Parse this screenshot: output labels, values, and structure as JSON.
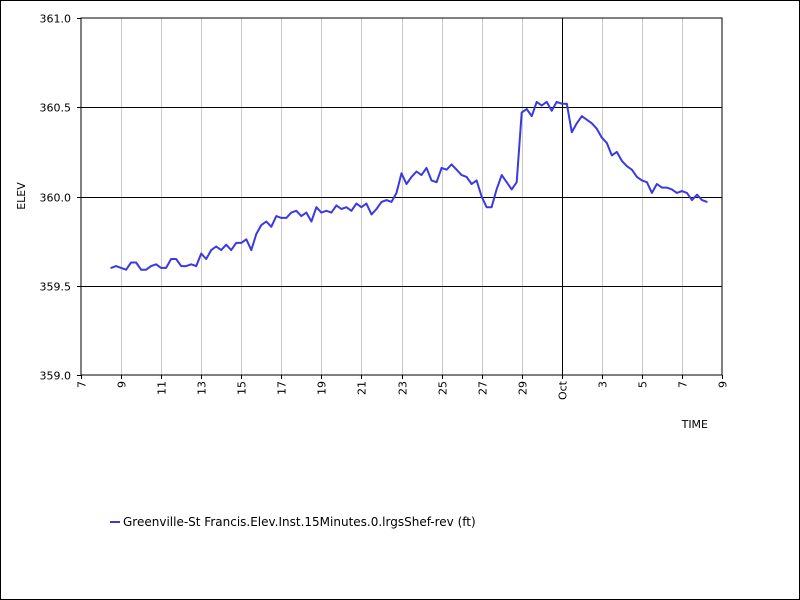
{
  "chart_data": {
    "type": "line",
    "title": "",
    "xlabel": "TIME",
    "ylabel": "ELEV",
    "ylim": [
      359.0,
      361.0
    ],
    "yticks": [
      "359.0",
      "359.5",
      "360.0",
      "360.5",
      "361.0"
    ],
    "xlim": [
      "2023-09-07",
      "2023-10-09"
    ],
    "xticks": [
      {
        "date": "2023-09-07",
        "label": "7"
      },
      {
        "date": "2023-09-09",
        "label": "9"
      },
      {
        "date": "2023-09-11",
        "label": "11"
      },
      {
        "date": "2023-09-13",
        "label": "13"
      },
      {
        "date": "2023-09-15",
        "label": "15"
      },
      {
        "date": "2023-09-17",
        "label": "17"
      },
      {
        "date": "2023-09-19",
        "label": "19"
      },
      {
        "date": "2023-09-21",
        "label": "21"
      },
      {
        "date": "2023-09-23",
        "label": "23"
      },
      {
        "date": "2023-09-25",
        "label": "25"
      },
      {
        "date": "2023-09-27",
        "label": "27"
      },
      {
        "date": "2023-09-29",
        "label": "29"
      },
      {
        "date": "2023-10-01",
        "label": "Oct"
      },
      {
        "date": "2023-10-03",
        "label": "3"
      },
      {
        "date": "2023-10-05",
        "label": "5"
      },
      {
        "date": "2023-10-07",
        "label": "7"
      },
      {
        "date": "2023-10-09",
        "label": "9"
      }
    ],
    "major_gridline_date": "2023-10-01",
    "grid": true,
    "legend_position": "bottom-left",
    "series": [
      {
        "name": "Greenville-St Francis.Elev.Inst.15Minutes.0.lrgsShef-rev (ft)",
        "color": "#3a3adf",
        "points": [
          [
            "2023-09-08T12:00",
            359.6
          ],
          [
            "2023-09-08T18:00",
            359.61
          ],
          [
            "2023-09-09T00:00",
            359.6
          ],
          [
            "2023-09-09T06:00",
            359.59
          ],
          [
            "2023-09-09T12:00",
            359.63
          ],
          [
            "2023-09-09T18:00",
            359.63
          ],
          [
            "2023-09-10T00:00",
            359.59
          ],
          [
            "2023-09-10T06:00",
            359.59
          ],
          [
            "2023-09-10T12:00",
            359.61
          ],
          [
            "2023-09-10T18:00",
            359.62
          ],
          [
            "2023-09-11T00:00",
            359.6
          ],
          [
            "2023-09-11T06:00",
            359.6
          ],
          [
            "2023-09-11T12:00",
            359.65
          ],
          [
            "2023-09-11T18:00",
            359.65
          ],
          [
            "2023-09-12T00:00",
            359.61
          ],
          [
            "2023-09-12T06:00",
            359.61
          ],
          [
            "2023-09-12T12:00",
            359.62
          ],
          [
            "2023-09-12T18:00",
            359.61
          ],
          [
            "2023-09-13T00:00",
            359.68
          ],
          [
            "2023-09-13T06:00",
            359.65
          ],
          [
            "2023-09-13T12:00",
            359.7
          ],
          [
            "2023-09-13T18:00",
            359.72
          ],
          [
            "2023-09-14T00:00",
            359.7
          ],
          [
            "2023-09-14T06:00",
            359.73
          ],
          [
            "2023-09-14T12:00",
            359.7
          ],
          [
            "2023-09-14T18:00",
            359.74
          ],
          [
            "2023-09-15T00:00",
            359.74
          ],
          [
            "2023-09-15T06:00",
            359.76
          ],
          [
            "2023-09-15T12:00",
            359.7
          ],
          [
            "2023-09-15T18:00",
            359.79
          ],
          [
            "2023-09-16T00:00",
            359.84
          ],
          [
            "2023-09-16T06:00",
            359.86
          ],
          [
            "2023-09-16T12:00",
            359.83
          ],
          [
            "2023-09-16T18:00",
            359.89
          ],
          [
            "2023-09-17T00:00",
            359.88
          ],
          [
            "2023-09-17T06:00",
            359.88
          ],
          [
            "2023-09-17T12:00",
            359.91
          ],
          [
            "2023-09-17T18:00",
            359.92
          ],
          [
            "2023-09-18T00:00",
            359.89
          ],
          [
            "2023-09-18T06:00",
            359.91
          ],
          [
            "2023-09-18T12:00",
            359.86
          ],
          [
            "2023-09-18T18:00",
            359.94
          ],
          [
            "2023-09-19T00:00",
            359.91
          ],
          [
            "2023-09-19T06:00",
            359.92
          ],
          [
            "2023-09-19T12:00",
            359.91
          ],
          [
            "2023-09-19T18:00",
            359.95
          ],
          [
            "2023-09-20T00:00",
            359.93
          ],
          [
            "2023-09-20T06:00",
            359.94
          ],
          [
            "2023-09-20T12:00",
            359.92
          ],
          [
            "2023-09-20T18:00",
            359.96
          ],
          [
            "2023-09-21T00:00",
            359.94
          ],
          [
            "2023-09-21T06:00",
            359.96
          ],
          [
            "2023-09-21T12:00",
            359.9
          ],
          [
            "2023-09-21T18:00",
            359.93
          ],
          [
            "2023-09-22T00:00",
            359.97
          ],
          [
            "2023-09-22T06:00",
            359.98
          ],
          [
            "2023-09-22T12:00",
            359.97
          ],
          [
            "2023-09-22T18:00",
            360.02
          ],
          [
            "2023-09-23T00:00",
            360.13
          ],
          [
            "2023-09-23T06:00",
            360.07
          ],
          [
            "2023-09-23T12:00",
            360.11
          ],
          [
            "2023-09-23T18:00",
            360.14
          ],
          [
            "2023-09-24T00:00",
            360.12
          ],
          [
            "2023-09-24T06:00",
            360.16
          ],
          [
            "2023-09-24T12:00",
            360.09
          ],
          [
            "2023-09-24T18:00",
            360.08
          ],
          [
            "2023-09-25T00:00",
            360.16
          ],
          [
            "2023-09-25T06:00",
            360.15
          ],
          [
            "2023-09-25T12:00",
            360.18
          ],
          [
            "2023-09-25T18:00",
            360.15
          ],
          [
            "2023-09-26T00:00",
            360.12
          ],
          [
            "2023-09-26T06:00",
            360.11
          ],
          [
            "2023-09-26T12:00",
            360.07
          ],
          [
            "2023-09-26T18:00",
            360.09
          ],
          [
            "2023-09-27T00:00",
            360.0
          ],
          [
            "2023-09-27T06:00",
            359.94
          ],
          [
            "2023-09-27T12:00",
            359.94
          ],
          [
            "2023-09-27T18:00",
            360.04
          ],
          [
            "2023-09-28T00:00",
            360.12
          ],
          [
            "2023-09-28T06:00",
            360.08
          ],
          [
            "2023-09-28T12:00",
            360.04
          ],
          [
            "2023-09-28T18:00",
            360.08
          ],
          [
            "2023-09-29T00:00",
            360.47
          ],
          [
            "2023-09-29T06:00",
            360.49
          ],
          [
            "2023-09-29T12:00",
            360.45
          ],
          [
            "2023-09-29T18:00",
            360.53
          ],
          [
            "2023-09-30T00:00",
            360.51
          ],
          [
            "2023-09-30T06:00",
            360.53
          ],
          [
            "2023-09-30T12:00",
            360.48
          ],
          [
            "2023-09-30T18:00",
            360.53
          ],
          [
            "2023-10-01T00:00",
            360.52
          ],
          [
            "2023-10-01T06:00",
            360.52
          ],
          [
            "2023-10-01T12:00",
            360.36
          ],
          [
            "2023-10-01T18:00",
            360.41
          ],
          [
            "2023-10-02T00:00",
            360.45
          ],
          [
            "2023-10-02T06:00",
            360.43
          ],
          [
            "2023-10-02T12:00",
            360.41
          ],
          [
            "2023-10-02T18:00",
            360.38
          ],
          [
            "2023-10-03T00:00",
            360.33
          ],
          [
            "2023-10-03T06:00",
            360.3
          ],
          [
            "2023-10-03T12:00",
            360.23
          ],
          [
            "2023-10-03T18:00",
            360.25
          ],
          [
            "2023-10-04T00:00",
            360.2
          ],
          [
            "2023-10-04T06:00",
            360.17
          ],
          [
            "2023-10-04T12:00",
            360.15
          ],
          [
            "2023-10-04T18:00",
            360.11
          ],
          [
            "2023-10-05T00:00",
            360.09
          ],
          [
            "2023-10-05T06:00",
            360.08
          ],
          [
            "2023-10-05T12:00",
            360.02
          ],
          [
            "2023-10-05T18:00",
            360.07
          ],
          [
            "2023-10-06T00:00",
            360.05
          ],
          [
            "2023-10-06T06:00",
            360.05
          ],
          [
            "2023-10-06T12:00",
            360.04
          ],
          [
            "2023-10-06T18:00",
            360.02
          ],
          [
            "2023-10-07T00:00",
            360.03
          ],
          [
            "2023-10-07T06:00",
            360.02
          ],
          [
            "2023-10-07T12:00",
            359.98
          ],
          [
            "2023-10-07T18:00",
            360.01
          ],
          [
            "2023-10-08T00:00",
            359.98
          ],
          [
            "2023-10-08T06:00",
            359.97
          ]
        ]
      }
    ]
  }
}
